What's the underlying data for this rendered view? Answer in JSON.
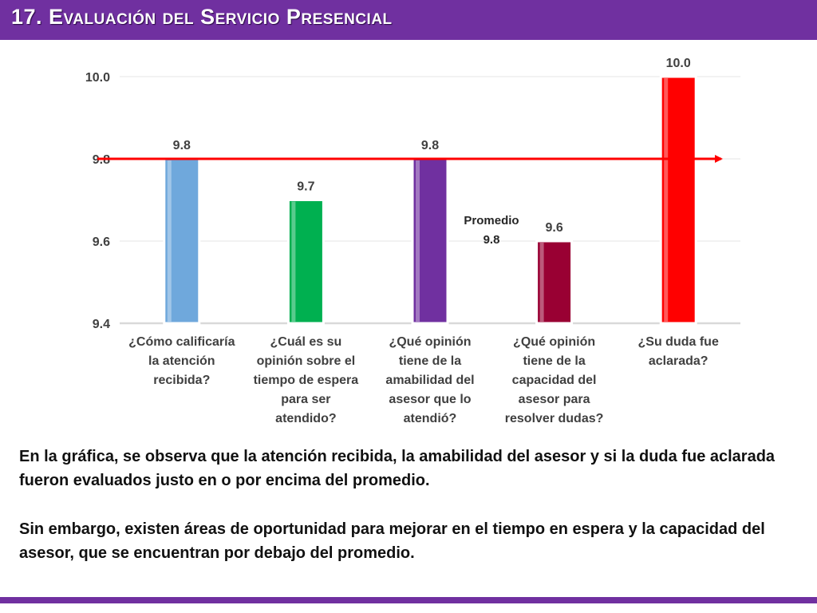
{
  "slide": {
    "title": "17. Evaluación del Servicio Presencial",
    "paragraph1": "En la gráfica, se observa que la atención recibida, la amabilidad del asesor y si la duda fue aclarada fueron evaluados justo en o por encima del promedio.",
    "paragraph2": "Sin embargo, existen áreas de oportunidad para mejorar en el tiempo en espera y la capacidad del asesor, que se encuentran por debajo del promedio."
  },
  "colors": {
    "header": "#7030a0",
    "average_line": "#ff0000"
  },
  "chart_data": {
    "type": "bar",
    "categories": [
      [
        "¿Cómo calificaría",
        "la atención",
        "recibida?"
      ],
      [
        "¿Cuál es su",
        "opinión sobre el",
        "tiempo de espera",
        "para ser",
        "atendido?"
      ],
      [
        "¿Qué opinión",
        "tiene de la",
        "amabilidad del",
        "asesor que lo",
        "atendió?"
      ],
      [
        "¿Qué opinión",
        "tiene de la",
        "capacidad del",
        "asesor para",
        "resolver dudas?"
      ],
      [
        "¿Su duda fue",
        "aclarada?"
      ]
    ],
    "values": [
      9.8,
      9.7,
      9.8,
      9.6,
      10.0
    ],
    "value_labels": [
      "9.8",
      "9.7",
      "9.8",
      "9.6",
      "10.0"
    ],
    "bar_colors": [
      "#6fa8dc",
      "#00b050",
      "#7030a0",
      "#990033",
      "#ff0000"
    ],
    "ylim": [
      9.4,
      10.0
    ],
    "yticks": [
      "9.4",
      "9.6",
      "9.8",
      "10.0"
    ],
    "average": {
      "value": 9.8,
      "label_line1": "Promedio",
      "label_line2": "9.8"
    },
    "grid": true
  }
}
